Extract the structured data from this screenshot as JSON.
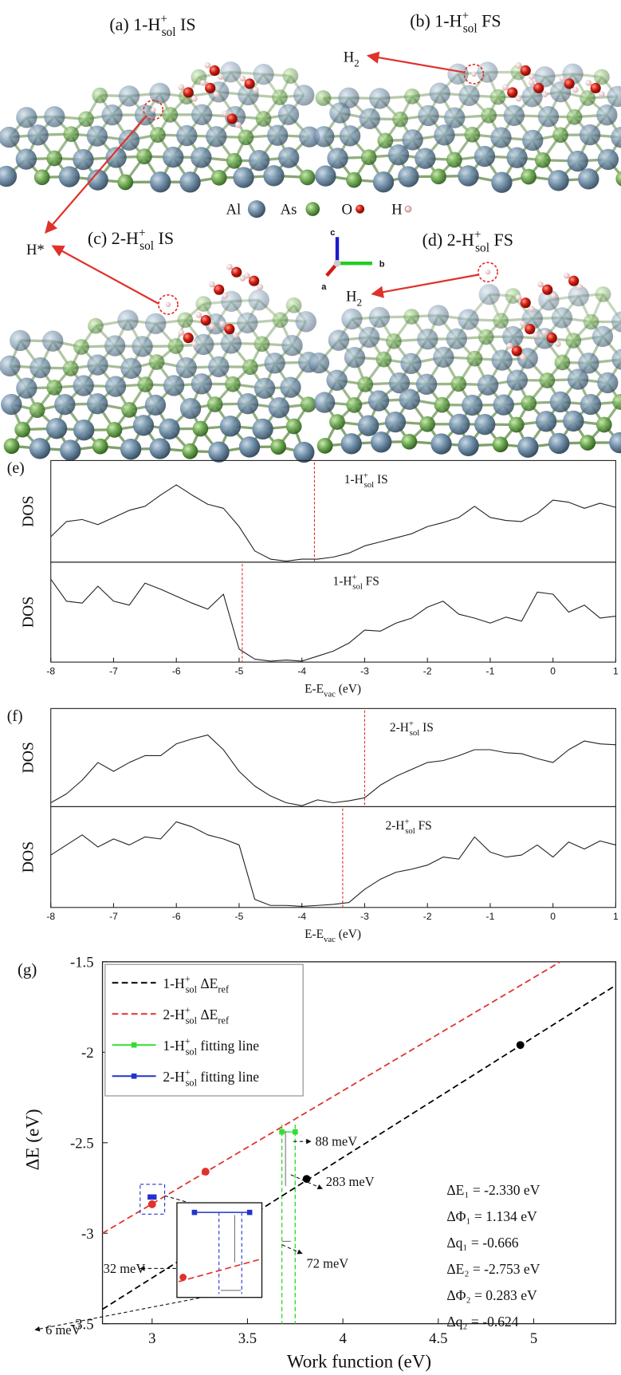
{
  "panels": [
    {
      "label": [
        "(a) 1-H",
        {
          "sup": "+"
        },
        {
          "sub": "sol"
        },
        " IS"
      ]
    },
    {
      "label": [
        "(b) 1-H",
        {
          "sup": "+"
        },
        {
          "sub": "sol"
        },
        " FS"
      ]
    },
    {
      "label": [
        "(c) 2-H",
        {
          "sup": "+"
        },
        {
          "sub": "sol"
        },
        " IS"
      ]
    },
    {
      "label": [
        "(d) 2-H",
        {
          "sup": "+"
        },
        {
          "sub": "sol"
        },
        " FS"
      ]
    }
  ],
  "labels": {
    "h_star": "H*",
    "h2_b": [
      "H",
      {
        "sub": "2"
      }
    ],
    "h2_d": [
      "H",
      {
        "sub": "2"
      }
    ]
  },
  "atom_legend": [
    "Al",
    "As",
    "O",
    "H"
  ],
  "axes_triad": [
    "a",
    "b",
    "c"
  ],
  "chart_data": [
    {
      "type": "line",
      "panel_label": "(e)",
      "title": [
        "1-H",
        {
          "sup": "+"
        },
        {
          "sub": "sol"
        },
        " IS"
      ],
      "ylabel": "DOS",
      "x": [
        -8,
        -7.75,
        -7.5,
        -7.25,
        -7,
        -6.75,
        -6.5,
        -6.25,
        -6,
        -5.75,
        -5.5,
        -5.25,
        -5,
        -4.75,
        -4.5,
        -4.25,
        -4,
        -3.75,
        -3.5,
        -3.25,
        -3,
        -2.75,
        -2.5,
        -2.25,
        -2,
        -1.75,
        -1.5,
        -1.25,
        -1,
        -0.75,
        -0.5,
        -0.25,
        0,
        0.25,
        0.5,
        0.75,
        1
      ],
      "values": [
        0.25,
        0.4,
        0.42,
        0.37,
        0.44,
        0.51,
        0.55,
        0.66,
        0.76,
        0.66,
        0.57,
        0.53,
        0.35,
        0.11,
        0.03,
        0.01,
        0.03,
        0.03,
        0.05,
        0.09,
        0.16,
        0.2,
        0.24,
        0.28,
        0.35,
        0.39,
        0.44,
        0.55,
        0.44,
        0.41,
        0.4,
        0.48,
        0.61,
        0.59,
        0.53,
        0.58,
        0.54
      ],
      "color": "#222222",
      "fermi_level": -3.8,
      "fermi_color": "#e0312b",
      "xlim": [
        -8,
        1
      ],
      "ylim": [
        0,
        1
      ]
    },
    {
      "type": "line",
      "title": [
        "1-H",
        {
          "sup": "+"
        },
        {
          "sub": "sol"
        },
        " FS"
      ],
      "ylabel": "DOS",
      "x": [
        -8,
        -7.75,
        -7.5,
        -7.25,
        -7,
        -6.75,
        -6.5,
        -6.25,
        -6,
        -5.75,
        -5.5,
        -5.25,
        -5,
        -4.75,
        -4.5,
        -4.25,
        -4,
        -3.75,
        -3.5,
        -3.25,
        -3,
        -2.75,
        -2.5,
        -2.25,
        -2,
        -1.75,
        -1.5,
        -1.25,
        -1,
        -0.75,
        -0.5,
        -0.25,
        0,
        0.25,
        0.5,
        0.75,
        1
      ],
      "values": [
        0.83,
        0.61,
        0.59,
        0.76,
        0.61,
        0.57,
        0.79,
        0.73,
        0.66,
        0.59,
        0.53,
        0.68,
        0.13,
        0.03,
        0.01,
        0.02,
        0.01,
        0.06,
        0.11,
        0.19,
        0.32,
        0.31,
        0.39,
        0.44,
        0.55,
        0.61,
        0.48,
        0.44,
        0.39,
        0.45,
        0.41,
        0.7,
        0.68,
        0.5,
        0.57,
        0.44,
        0.46
      ],
      "color": "#222222",
      "fermi_level": -4.95,
      "fermi_color": "#e0312b",
      "xlim": [
        -8,
        1
      ],
      "ylim": [
        0,
        1
      ],
      "xticks": [
        -8,
        -7,
        -6,
        -5,
        -4,
        -3,
        -2,
        -1,
        0,
        1
      ],
      "xlabel": [
        "E-E",
        {
          "sub": "vac"
        },
        " (eV)"
      ]
    },
    {
      "type": "line",
      "panel_label": "(f)",
      "title": [
        "2-H",
        {
          "sup": "+"
        },
        {
          "sub": "sol"
        },
        " IS"
      ],
      "ylabel": "DOS",
      "x": [
        -8,
        -7.75,
        -7.5,
        -7.25,
        -7,
        -6.75,
        -6.5,
        -6.25,
        -6,
        -5.75,
        -5.5,
        -5.25,
        -5,
        -4.75,
        -4.5,
        -4.25,
        -4,
        -3.75,
        -3.5,
        -3.25,
        -3,
        -2.75,
        -2.5,
        -2.25,
        -2,
        -1.75,
        -1.5,
        -1.25,
        -1,
        -0.75,
        -0.5,
        -0.25,
        0,
        0.25,
        0.5,
        0.75,
        1
      ],
      "values": [
        0.04,
        0.13,
        0.27,
        0.45,
        0.36,
        0.45,
        0.52,
        0.52,
        0.64,
        0.69,
        0.73,
        0.58,
        0.36,
        0.21,
        0.11,
        0.04,
        0.01,
        0.07,
        0.04,
        0.06,
        0.09,
        0.22,
        0.31,
        0.38,
        0.45,
        0.47,
        0.52,
        0.58,
        0.58,
        0.55,
        0.54,
        0.49,
        0.45,
        0.58,
        0.67,
        0.64,
        0.63
      ],
      "color": "#222222",
      "fermi_level": -3.0,
      "fermi_color": "#e0312b",
      "xlim": [
        -8,
        1
      ],
      "ylim": [
        0,
        1
      ]
    },
    {
      "type": "line",
      "title": [
        "2-H",
        {
          "sup": "+"
        },
        {
          "sub": "sol"
        },
        " FS"
      ],
      "ylabel": "DOS",
      "x": [
        -8,
        -7.75,
        -7.5,
        -7.25,
        -7,
        -6.75,
        -6.5,
        -6.25,
        -6,
        -5.75,
        -5.5,
        -5.25,
        -5,
        -4.75,
        -4.5,
        -4.25,
        -4,
        -3.75,
        -3.5,
        -3.25,
        -3,
        -2.75,
        -2.5,
        -2.25,
        -2,
        -1.75,
        -1.5,
        -1.25,
        -1,
        -0.75,
        -0.5,
        -0.25,
        0,
        0.25,
        0.5,
        0.75,
        1
      ],
      "values": [
        0.52,
        0.62,
        0.72,
        0.6,
        0.68,
        0.62,
        0.7,
        0.68,
        0.85,
        0.8,
        0.72,
        0.68,
        0.62,
        0.08,
        0.02,
        0.02,
        0.01,
        0.02,
        0.03,
        0.05,
        0.18,
        0.28,
        0.35,
        0.38,
        0.42,
        0.5,
        0.48,
        0.7,
        0.55,
        0.5,
        0.52,
        0.62,
        0.5,
        0.65,
        0.58,
        0.66,
        0.62
      ],
      "color": "#222222",
      "fermi_level": -3.35,
      "fermi_color": "#e0312b",
      "xlim": [
        -8,
        1
      ],
      "ylim": [
        0,
        1
      ],
      "xticks": [
        -8,
        -7,
        -6,
        -5,
        -4,
        -3,
        -2,
        -1,
        0,
        1
      ],
      "xlabel": [
        "E-E",
        {
          "sub": "vac"
        },
        " (eV)"
      ]
    },
    {
      "type": "line",
      "panel_label": "(g)",
      "xlabel": "Work function (eV)",
      "ylabel": "ΔE (eV)",
      "xlim": [
        2.74,
        5.43
      ],
      "ylim": [
        -3.5,
        -1.5
      ],
      "xticks": [
        3,
        3.5,
        4,
        4.5,
        5
      ],
      "yticks": [
        -1.5,
        -2,
        -2.5,
        -3,
        -3.5
      ],
      "series": [
        {
          "name": [
            "1-H",
            {
              "sup": "+"
            },
            {
              "sub": "sol"
            },
            " ΔE",
            {
              "sub": "ref"
            }
          ],
          "color": "#000000",
          "dash": true,
          "x": [
            2.74,
            5.43
          ],
          "values": [
            -3.42,
            -1.63
          ]
        },
        {
          "name": [
            "2-H",
            {
              "sup": "+"
            },
            {
              "sub": "sol"
            },
            " ΔE",
            {
              "sub": "ref"
            }
          ],
          "color": "#e0312b",
          "dash": true,
          "x": [
            2.74,
            5.14
          ],
          "values": [
            -3.0,
            -1.5
          ]
        },
        {
          "name": [
            "1-H",
            {
              "sup": "+"
            },
            {
              "sub": "sol"
            },
            " fitting line"
          ],
          "color": "#33dd33",
          "dash": false,
          "x": [
            3.68,
            3.75
          ],
          "values": [
            -2.44,
            -2.44
          ]
        },
        {
          "name": [
            "2-H",
            {
              "sup": "+"
            },
            {
              "sub": "sol"
            },
            " fitting line"
          ],
          "color": "#2233cc",
          "dash": false,
          "x": [
            2.99,
            3.01
          ],
          "values": [
            -2.8,
            -2.8
          ]
        }
      ],
      "points": [
        {
          "color": "#000000",
          "x": [
            3.81,
            4.93
          ],
          "values": [
            -2.7,
            -1.96
          ]
        },
        {
          "color": "#e0312b",
          "x": [
            3.0,
            3.28
          ],
          "values": [
            -2.84,
            -2.66
          ]
        }
      ],
      "vlines": {
        "color": "#33dd33",
        "x": [
          3.68,
          3.75
        ],
        "values": [
          -2.4,
          -2.4
        ]
      },
      "annotations": [
        "88 meV",
        "283 meV",
        "32 meV",
        "72 meV",
        "6 meV"
      ],
      "results": [
        "ΔE₁ = -2.330 eV",
        "ΔΦ₁ = 1.134 eV",
        "Δq₁ = -0.666",
        "ΔE₂ = -2.753 eV",
        "ΔΦ₂ = 0.283 eV",
        "Δq₂ = -0.624"
      ]
    }
  ]
}
